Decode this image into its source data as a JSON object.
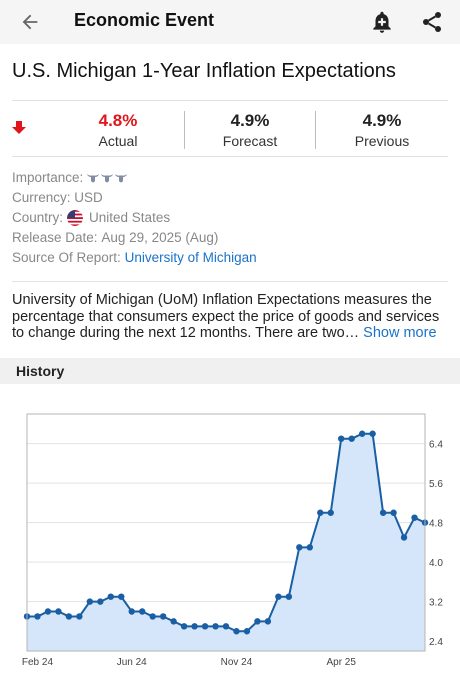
{
  "header": {
    "title": "Economic Event"
  },
  "event": {
    "title": "U.S. Michigan 1-Year Inflation Expectations"
  },
  "stats": {
    "actual": {
      "value": "4.8%",
      "label": "Actual",
      "color": "#e0151b"
    },
    "forecast": {
      "value": "4.9%",
      "label": "Forecast"
    },
    "previous": {
      "value": "4.9%",
      "label": "Previous"
    }
  },
  "info": {
    "importance_label": "Importance:",
    "importance_level": 3,
    "currency_label": "Currency:",
    "currency": "USD",
    "country_label": "Country:",
    "country": "United States",
    "release_label": "Release Date:",
    "release_date": "Aug 29, 2025 (Aug)",
    "source_label": "Source Of Report:",
    "source": "University of Michigan"
  },
  "description": {
    "text": "University of Michigan (UoM) Inflation Expectations measures the percentage that consumers expect the price of goods and services to change during the next 12 months. There are two…",
    "more_label": "Show more"
  },
  "history": {
    "label": "History"
  },
  "colors": {
    "accent": "#1a73c8",
    "line": "#1a5fa3",
    "fill": "#d5e6fb",
    "down": "#e0151b"
  },
  "chart_data": {
    "type": "area",
    "x_tick_labels": [
      "Feb 24",
      "Jun 24",
      "Nov 24",
      "Apr 25"
    ],
    "x_tick_index": [
      1,
      10,
      20,
      30
    ],
    "y_ticks": [
      2.4,
      3.2,
      4.0,
      4.8,
      5.6,
      6.4
    ],
    "ylim": [
      2.2,
      7.0
    ],
    "series": [
      {
        "values": [
          2.9,
          2.9,
          3.0,
          3.0,
          2.9,
          2.9,
          3.2,
          3.2,
          3.3,
          3.3,
          3.0,
          3.0,
          2.9,
          2.9,
          2.8,
          2.7,
          2.7,
          2.7,
          2.7,
          2.7,
          2.6,
          2.6,
          2.8,
          2.8,
          3.3,
          3.3,
          4.3,
          4.3,
          5.0,
          5.0,
          6.5,
          6.5,
          6.6,
          6.6,
          5.0,
          5.0,
          4.5,
          4.9,
          4.8
        ]
      }
    ]
  }
}
